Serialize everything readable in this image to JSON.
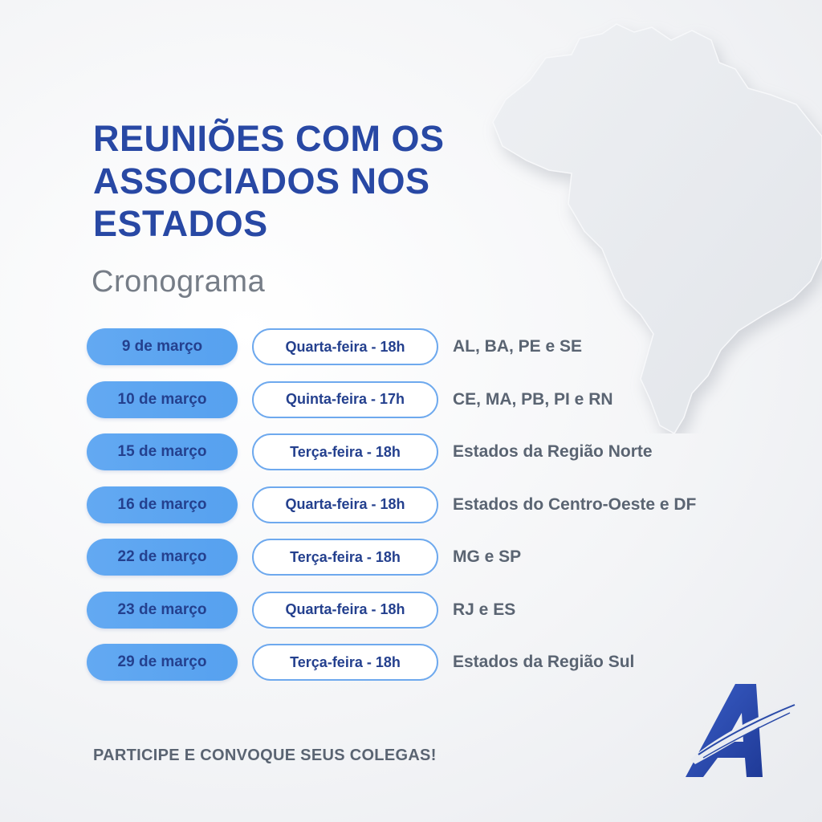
{
  "title_lines": [
    "REUNIÕES COM OS",
    "ASSOCIADOS NOS",
    "ESTADOS"
  ],
  "subtitle": "Cronograma",
  "schedule": [
    {
      "date": "9 de março",
      "time": "Quarta-feira - 18h",
      "states": "AL, BA, PE e SE"
    },
    {
      "date": "10 de março",
      "time": "Quinta-feira - 17h",
      "states": "CE, MA, PB, PI e RN"
    },
    {
      "date": "15 de março",
      "time": "Terça-feira - 18h",
      "states": "Estados da Região Norte"
    },
    {
      "date": "16 de março",
      "time": "Quarta-feira - 18h",
      "states": "Estados do Centro-Oeste e DF"
    },
    {
      "date": "22 de março",
      "time": "Terça-feira - 18h",
      "states": "MG e SP"
    },
    {
      "date": "23 de março",
      "time": "Quarta-feira - 18h",
      "states": "RJ e ES"
    },
    {
      "date": "29 de março",
      "time": "Terça-feira - 18h",
      "states": "Estados da Região Sul"
    }
  ],
  "cta": "PARTICIPE E CONVOQUE SEUS COLEGAS!",
  "icons": {
    "map": "brazil-map-icon",
    "logo": "a-logo-icon"
  },
  "colors": {
    "title": "#2848a4",
    "date_pill": "#5aa3ef",
    "pill_text": "#24408e",
    "time_border": "#6ea9ee",
    "states_text": "#5a6472",
    "subtitle": "#767d87"
  }
}
